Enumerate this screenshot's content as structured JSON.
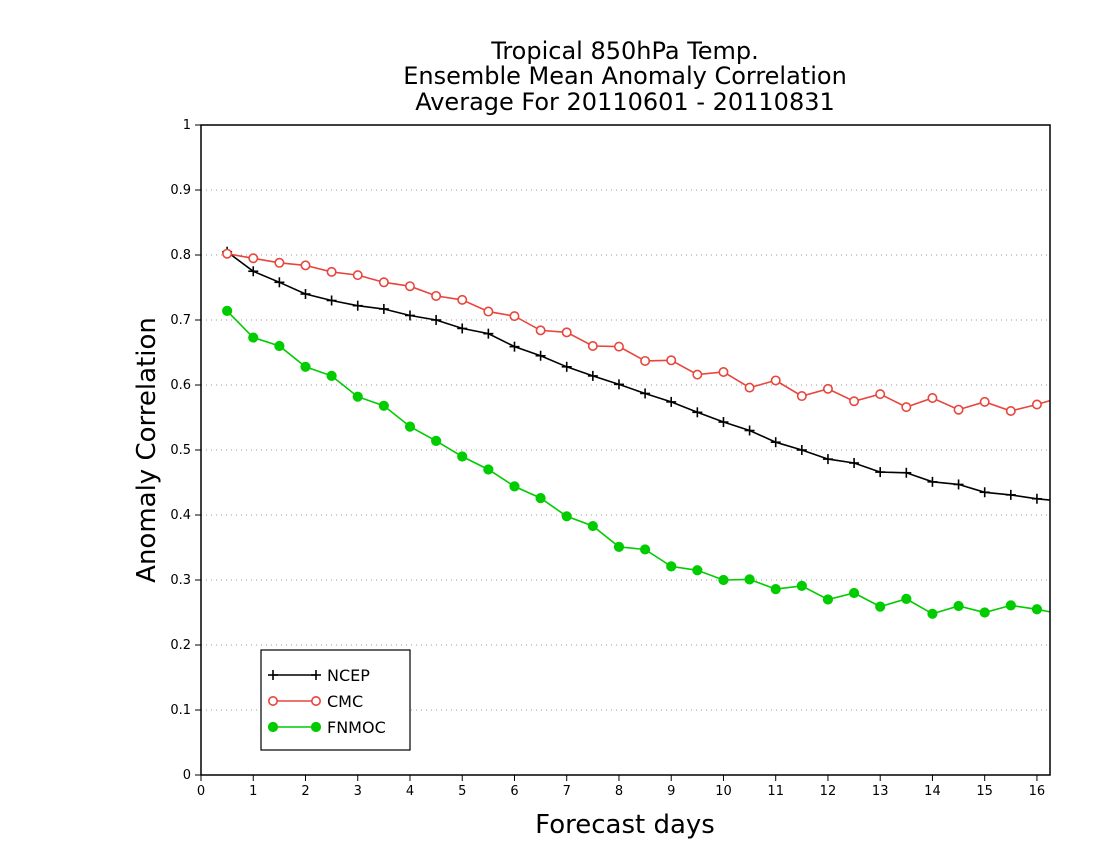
{
  "chart_data": {
    "type": "line",
    "title": [
      "Tropical 850hPa Temp.",
      "Ensemble Mean Anomaly Correlation",
      "Average For 20110601 - 20110831"
    ],
    "xlabel": "Forecast days",
    "ylabel": "Anomaly Correlation",
    "xlim": [
      0,
      16.25
    ],
    "ylim": [
      0,
      1
    ],
    "xticks": [
      0,
      1,
      2,
      3,
      4,
      5,
      6,
      7,
      8,
      9,
      10,
      11,
      12,
      13,
      14,
      15,
      16
    ],
    "xtick_labels": [
      "0",
      "1",
      "2",
      "3",
      "4",
      "5",
      "6",
      "7",
      "8",
      "9",
      "10",
      "11",
      "12",
      "13",
      "14",
      "15",
      "16"
    ],
    "yticks": [
      0,
      0.1,
      0.2,
      0.3,
      0.4,
      0.5,
      0.6,
      0.7,
      0.8,
      0.9,
      1
    ],
    "ytick_labels": [
      "0",
      "0.1",
      "0.2",
      "0.3",
      "0.4",
      "0.5",
      "0.6",
      "0.7",
      "0.8",
      "0.9",
      "1"
    ],
    "grid": "horizontal dotted",
    "legend_position": "bottom-left",
    "x": [
      0.5,
      1,
      1.5,
      2,
      2.5,
      3,
      3.5,
      4,
      4.5,
      5,
      5.5,
      6,
      6.5,
      7,
      7.5,
      8,
      8.5,
      9,
      9.5,
      10,
      10.5,
      11,
      11.5,
      12,
      12.5,
      13,
      13.5,
      14,
      14.5,
      15,
      15.5,
      16,
      16.25
    ],
    "series": [
      {
        "name": "NCEP",
        "color": "#000000",
        "marker": "plus",
        "values": [
          0.805,
          0.775,
          0.758,
          0.74,
          0.73,
          0.722,
          0.717,
          0.707,
          0.7,
          0.687,
          0.679,
          0.659,
          0.645,
          0.628,
          0.614,
          0.601,
          0.587,
          0.574,
          0.558,
          0.543,
          0.53,
          0.512,
          0.5,
          0.486,
          0.48,
          0.466,
          0.465,
          0.451,
          0.447,
          0.435,
          0.431,
          0.425,
          0.423
        ]
      },
      {
        "name": "CMC",
        "color": "#e8453c",
        "marker": "open-circle",
        "values": [
          0.802,
          0.795,
          0.788,
          0.784,
          0.774,
          0.769,
          0.758,
          0.752,
          0.737,
          0.731,
          0.713,
          0.706,
          0.684,
          0.681,
          0.66,
          0.659,
          0.637,
          0.638,
          0.616,
          0.62,
          0.596,
          0.607,
          0.583,
          0.594,
          0.575,
          0.586,
          0.566,
          0.58,
          0.562,
          0.574,
          0.56,
          0.57,
          0.576
        ]
      },
      {
        "name": "FNMOC",
        "color": "#00cc00",
        "marker": "filled-circle",
        "values": [
          0.714,
          0.673,
          0.66,
          0.628,
          0.614,
          0.582,
          0.568,
          0.536,
          0.514,
          0.49,
          0.47,
          0.444,
          0.426,
          0.398,
          0.383,
          0.351,
          0.347,
          0.321,
          0.315,
          0.3,
          0.301,
          0.286,
          0.291,
          0.27,
          0.28,
          0.259,
          0.271,
          0.248,
          0.26,
          0.25,
          0.261,
          0.255,
          0.251
        ]
      }
    ]
  }
}
